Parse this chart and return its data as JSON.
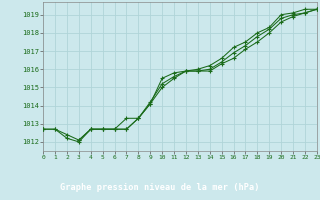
{
  "title": "Graphe pression niveau de la mer (hPa)",
  "bg_color": "#cce8ec",
  "grid_color": "#b0d4d8",
  "line_color": "#1a6b1a",
  "label_bg": "#1a6b1a",
  "xlim": [
    0,
    23
  ],
  "ylim": [
    1011.5,
    1019.7
  ],
  "yticks": [
    1012,
    1013,
    1014,
    1015,
    1016,
    1017,
    1018,
    1019
  ],
  "xticks": [
    0,
    1,
    2,
    3,
    4,
    5,
    6,
    7,
    8,
    9,
    10,
    11,
    12,
    13,
    14,
    15,
    16,
    17,
    18,
    19,
    20,
    21,
    22,
    23
  ],
  "series": [
    [
      1012.7,
      1012.7,
      1012.2,
      1012.0,
      1012.7,
      1012.7,
      1012.7,
      1012.7,
      1013.3,
      1014.1,
      1015.5,
      1015.8,
      1015.9,
      1016.0,
      1016.2,
      1016.6,
      1017.2,
      1017.5,
      1018.0,
      1018.3,
      1019.0,
      1019.1,
      1019.3,
      1019.3
    ],
    [
      1012.7,
      1012.7,
      1012.4,
      1012.1,
      1012.7,
      1012.7,
      1012.7,
      1012.7,
      1013.3,
      1014.2,
      1015.2,
      1015.6,
      1015.9,
      1015.9,
      1016.0,
      1016.4,
      1016.9,
      1017.3,
      1017.8,
      1018.2,
      1018.8,
      1019.0,
      1019.1,
      1019.3
    ],
    [
      1012.7,
      null,
      null,
      1012.1,
      1012.7,
      1012.7,
      1012.7,
      1013.3,
      1013.3,
      1014.1,
      1015.0,
      1015.5,
      1015.9,
      1015.9,
      1015.9,
      1016.3,
      1016.6,
      1017.1,
      1017.5,
      1018.0,
      1018.6,
      1018.9,
      1019.1,
      1019.3
    ]
  ]
}
